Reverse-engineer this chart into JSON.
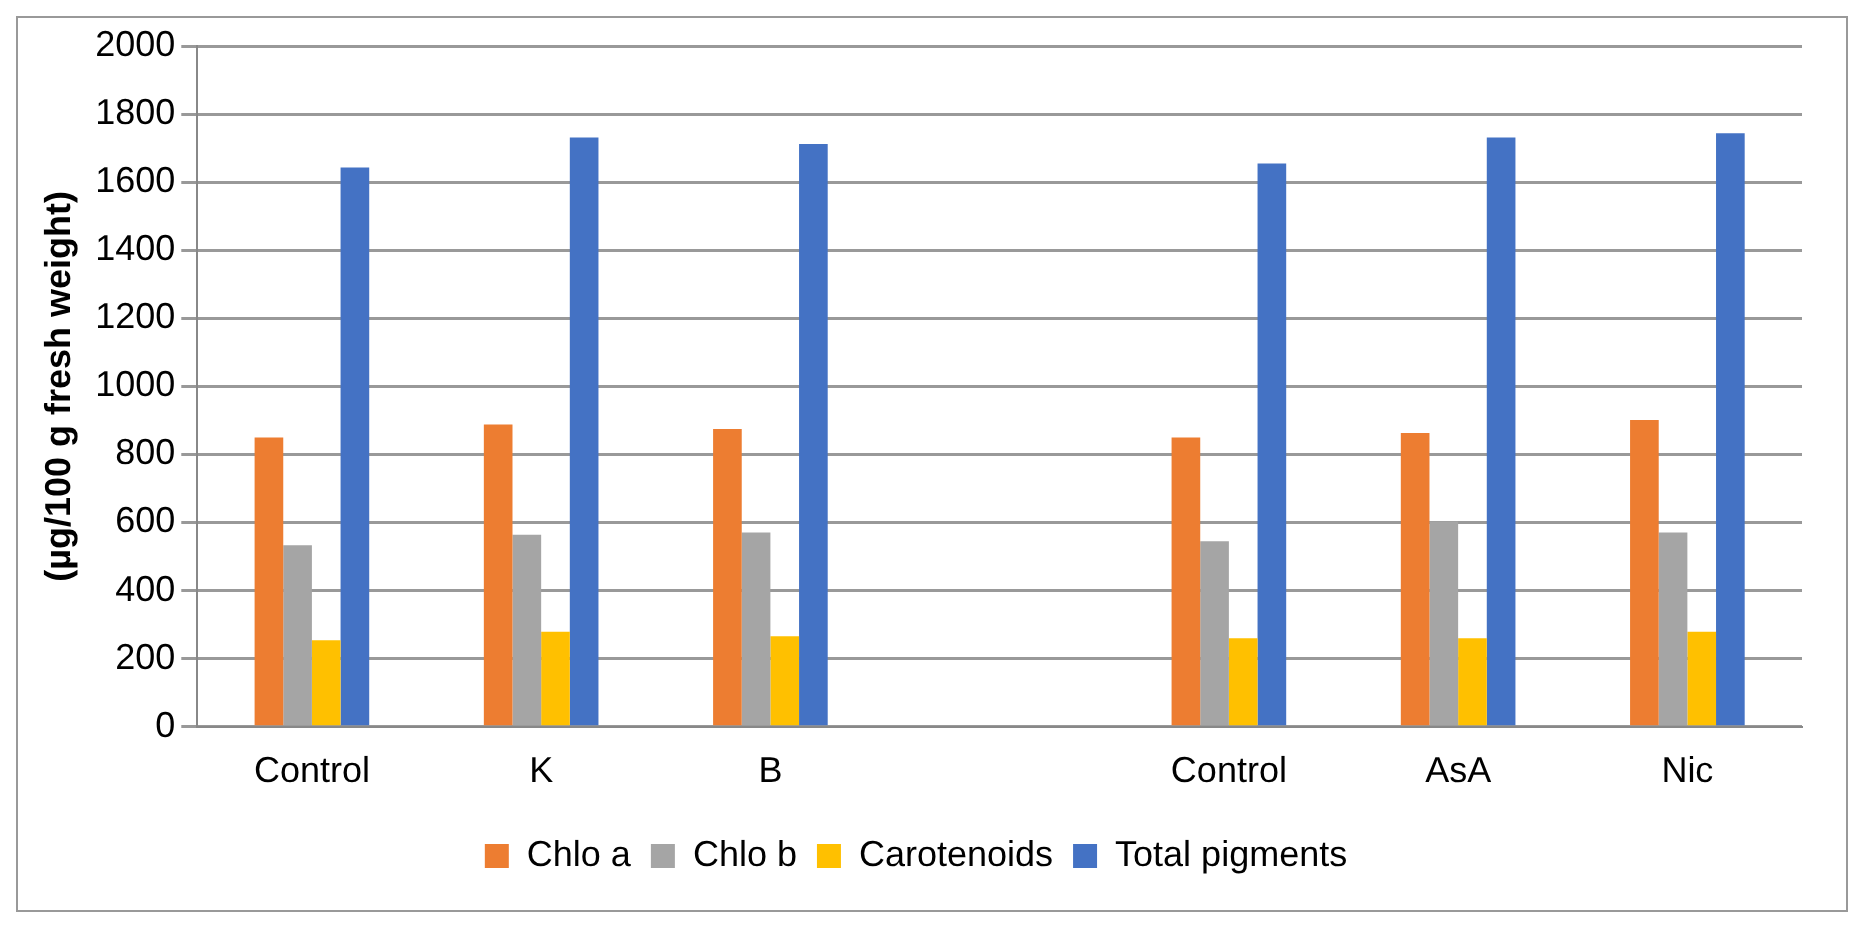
{
  "chart_data": {
    "type": "bar",
    "ylabel": "(µg/100 g fresh weight)",
    "categories": [
      "Control",
      "K",
      "B",
      null,
      "Control",
      "AsA",
      "Nic"
    ],
    "series": [
      {
        "name": "Chlo a",
        "color": "#ed7d31",
        "values": [
          850,
          888,
          875,
          null,
          850,
          863,
          901
        ]
      },
      {
        "name": "Chlo b",
        "color": "#a5a5a5",
        "values": [
          533,
          564,
          571,
          null,
          545,
          603,
          571
        ]
      },
      {
        "name": "Carotenoids",
        "color": "#ffc000",
        "values": [
          254,
          279,
          266,
          null,
          260,
          260,
          279
        ]
      },
      {
        "name": "Total pigments",
        "color": "#4472c4",
        "values": [
          1643,
          1731,
          1712,
          null,
          1655,
          1731,
          1744
        ]
      }
    ],
    "ylim": [
      0,
      2000
    ],
    "yticks": [
      0,
      200,
      400,
      600,
      800,
      1000,
      1200,
      1400,
      1600,
      1800,
      2000
    ],
    "grid": "y",
    "legend": "bottom"
  }
}
